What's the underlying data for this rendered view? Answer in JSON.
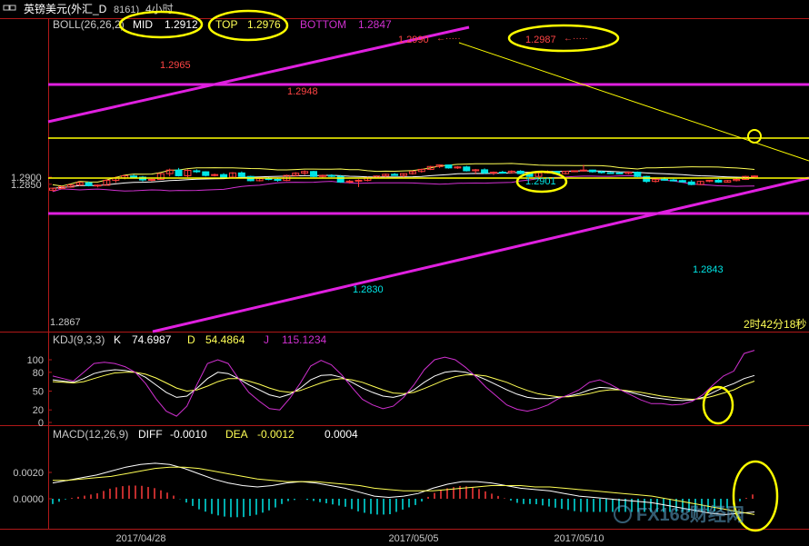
{
  "window": {
    "title_icon": "window-icon",
    "title": "英镑美元(外汇_D",
    "code": "8161)",
    "period": "4小时",
    "countdown": "2时42分18秒"
  },
  "colors": {
    "background": "#000000",
    "up_candle": "#ff3b3b",
    "down_candle": "#00e5e5",
    "mid_line": "#ffffff",
    "top_line": "#ffff55",
    "bottom_line": "#d030d0",
    "trendline": "#e020e0",
    "annotation": "#ffff00",
    "axis_red": "#b01818"
  },
  "boll": {
    "header": "BOLL(26,26,2)",
    "mid_label": "MID",
    "mid_value": "1.2912",
    "top_label": "TOP",
    "top_value": "1.2976",
    "bottom_label": "BOTTOM",
    "bottom_value": "1.2847"
  },
  "kdj": {
    "header": "KDJ(9,3,3)",
    "k_label": "K",
    "k_value": "74.6987",
    "d_label": "D",
    "d_value": "54.4864",
    "j_label": "J",
    "j_value": "115.1234"
  },
  "macd": {
    "header": "MACD(12,26,9)",
    "diff_label": "DIFF",
    "diff_value": "-0.0010",
    "dea_label": "DEA",
    "dea_value": "-0.0012",
    "macd_value": "0.0004"
  },
  "price_labels": [
    "1.2965",
    "1.2948",
    "1.2990",
    "1.2987",
    "1.2901",
    "1.2830",
    "1.2843",
    "1.2867"
  ],
  "watermark": "FX168财经网",
  "chart_data": [
    {
      "type": "candlestick",
      "panel": "BOLL",
      "ytick_labels": [
        "1.2900",
        "1.2850"
      ],
      "x_labels": [
        "2017/04/28",
        "2017/05/05",
        "2017/05/10"
      ],
      "ohlc": [
        [
          1.2808,
          1.2825,
          1.28,
          1.2822
        ],
        [
          1.282,
          1.2838,
          1.2815,
          1.2832
        ],
        [
          1.283,
          1.285,
          1.2825,
          1.2845
        ],
        [
          1.2845,
          1.287,
          1.2838,
          1.2862
        ],
        [
          1.286,
          1.2868,
          1.2835,
          1.284
        ],
        [
          1.284,
          1.2848,
          1.2828,
          1.2844
        ],
        [
          1.2843,
          1.2885,
          1.284,
          1.2878
        ],
        [
          1.2878,
          1.2905,
          1.286,
          1.2895
        ],
        [
          1.2895,
          1.2915,
          1.2885,
          1.291
        ],
        [
          1.2908,
          1.292,
          1.2895,
          1.29
        ],
        [
          1.29,
          1.2908,
          1.287,
          1.288
        ],
        [
          1.288,
          1.2888,
          1.287,
          1.2884
        ],
        [
          1.2884,
          1.293,
          1.288,
          1.2925
        ],
        [
          1.2925,
          1.296,
          1.2905,
          1.295
        ],
        [
          1.295,
          1.2965,
          1.2905,
          1.291
        ],
        [
          1.291,
          1.2955,
          1.29,
          1.2948
        ],
        [
          1.2945,
          1.2955,
          1.293,
          1.2938
        ],
        [
          1.2938,
          1.2942,
          1.2905,
          1.2912
        ],
        [
          1.2912,
          1.2925,
          1.2905,
          1.2918
        ],
        [
          1.2918,
          1.2928,
          1.2895,
          1.29
        ],
        [
          1.29,
          1.2935,
          1.2895,
          1.293
        ],
        [
          1.293,
          1.294,
          1.29,
          1.2905
        ],
        [
          1.2905,
          1.291,
          1.287,
          1.2875
        ],
        [
          1.2875,
          1.2898,
          1.287,
          1.289
        ],
        [
          1.289,
          1.29,
          1.2878,
          1.2884
        ],
        [
          1.2884,
          1.2892,
          1.2868,
          1.2877
        ],
        [
          1.2877,
          1.2918,
          1.2872,
          1.2912
        ],
        [
          1.2912,
          1.2935,
          1.2905,
          1.2928
        ],
        [
          1.2928,
          1.2948,
          1.2915,
          1.294
        ],
        [
          1.294,
          1.2945,
          1.29,
          1.2905
        ],
        [
          1.2905,
          1.2918,
          1.2895,
          1.2912
        ],
        [
          1.2912,
          1.292,
          1.29,
          1.2906
        ],
        [
          1.2906,
          1.2915,
          1.286,
          1.2865
        ],
        [
          1.2865,
          1.288,
          1.2855,
          1.2872
        ],
        [
          1.2872,
          1.2885,
          1.283,
          1.2878
        ],
        [
          1.2878,
          1.2902,
          1.287,
          1.2896
        ],
        [
          1.2896,
          1.2912,
          1.289,
          1.2908
        ],
        [
          1.2908,
          1.2925,
          1.29,
          1.292
        ],
        [
          1.292,
          1.293,
          1.291,
          1.2912
        ],
        [
          1.2912,
          1.2928,
          1.2895,
          1.2925
        ],
        [
          1.2925,
          1.2945,
          1.2918,
          1.294
        ],
        [
          1.294,
          1.296,
          1.2932,
          1.2955
        ],
        [
          1.2955,
          1.298,
          1.295,
          1.2975
        ],
        [
          1.2975,
          1.299,
          1.2965,
          1.2986
        ],
        [
          1.2986,
          1.2988,
          1.296,
          1.2965
        ],
        [
          1.2965,
          1.2978,
          1.2958,
          1.2972
        ],
        [
          1.2972,
          1.298,
          1.294,
          1.2945
        ],
        [
          1.2945,
          1.2958,
          1.292,
          1.2952
        ],
        [
          1.2952,
          1.2962,
          1.2922,
          1.293
        ],
        [
          1.293,
          1.294,
          1.2915,
          1.2935
        ],
        [
          1.2935,
          1.2945,
          1.2928,
          1.2932
        ],
        [
          1.2932,
          1.2948,
          1.2925,
          1.2942
        ],
        [
          1.2942,
          1.295,
          1.292,
          1.2925
        ],
        [
          1.2925,
          1.2932,
          1.2901,
          1.2905
        ],
        [
          1.2905,
          1.2935,
          1.2902,
          1.293
        ],
        [
          1.293,
          1.2948,
          1.2925,
          1.294
        ],
        [
          1.294,
          1.2945,
          1.2918,
          1.2925
        ],
        [
          1.2925,
          1.2945,
          1.292,
          1.2942
        ],
        [
          1.2942,
          1.2948,
          1.2935,
          1.2945
        ],
        [
          1.2945,
          1.2987,
          1.294,
          1.295
        ],
        [
          1.295,
          1.2952,
          1.2932,
          1.2938
        ],
        [
          1.2938,
          1.2945,
          1.2925,
          1.2932
        ],
        [
          1.2932,
          1.2938,
          1.2925,
          1.293
        ],
        [
          1.293,
          1.2936,
          1.2922,
          1.2926
        ],
        [
          1.2926,
          1.294,
          1.292,
          1.2935
        ],
        [
          1.2935,
          1.294,
          1.29,
          1.2905
        ],
        [
          1.2905,
          1.291,
          1.286,
          1.287
        ],
        [
          1.287,
          1.2892,
          1.2862,
          1.2885
        ],
        [
          1.2885,
          1.29,
          1.2875,
          1.288
        ],
        [
          1.288,
          1.2888,
          1.2872,
          1.2876
        ],
        [
          1.2876,
          1.2882,
          1.2862,
          1.2866
        ],
        [
          1.2866,
          1.288,
          1.2843,
          1.2848
        ],
        [
          1.2848,
          1.2875,
          1.2845,
          1.287
        ],
        [
          1.287,
          1.288,
          1.2865,
          1.2878
        ],
        [
          1.2878,
          1.2888,
          1.286,
          1.2865
        ],
        [
          1.2865,
          1.288,
          1.2862,
          1.2876
        ],
        [
          1.2876,
          1.289,
          1.287,
          1.2884
        ],
        [
          1.2884,
          1.291,
          1.288,
          1.2905
        ],
        [
          1.2905,
          1.2912,
          1.2896,
          1.2908
        ]
      ]
    },
    {
      "type": "line",
      "panel": "KDJ",
      "ytick_labels": [
        "100",
        "80",
        "50",
        "20",
        "0"
      ],
      "series": [
        {
          "name": "K",
          "values": [
            68,
            66,
            64,
            70,
            78,
            82,
            84,
            83,
            80,
            72,
            60,
            48,
            40,
            42,
            55,
            70,
            80,
            78,
            70,
            60,
            52,
            44,
            40,
            45,
            55,
            68,
            75,
            76,
            72,
            64,
            55,
            48,
            42,
            40,
            44,
            52,
            64,
            74,
            80,
            82,
            80,
            75,
            68,
            60,
            52,
            45,
            40,
            38,
            38,
            40,
            42,
            46,
            52,
            56,
            55,
            52,
            48,
            44,
            40,
            38,
            36,
            35,
            36,
            40,
            48,
            56,
            62,
            70,
            75
          ]
        },
        {
          "name": "D",
          "values": [
            65,
            64,
            63,
            65,
            70,
            75,
            79,
            80,
            80,
            77,
            71,
            63,
            55,
            50,
            52,
            58,
            65,
            70,
            70,
            66,
            61,
            55,
            50,
            48,
            51,
            57,
            63,
            68,
            70,
            68,
            64,
            58,
            52,
            47,
            46,
            48,
            54,
            61,
            68,
            73,
            76,
            76,
            74,
            69,
            64,
            57,
            51,
            46,
            43,
            41,
            41,
            43,
            46,
            50,
            52,
            52,
            50,
            48,
            45,
            42,
            40,
            38,
            37,
            38,
            42,
            47,
            52,
            60,
            66
          ]
        },
        {
          "name": "J",
          "values": [
            74,
            70,
            66,
            80,
            94,
            96,
            94,
            89,
            80,
            62,
            38,
            18,
            10,
            26,
            61,
            94,
            100,
            94,
            70,
            48,
            34,
            22,
            20,
            39,
            63,
            90,
            99,
            92,
            76,
            56,
            37,
            28,
            22,
            26,
            40,
            60,
            84,
            100,
            104,
            100,
            88,
            73,
            56,
            42,
            28,
            21,
            18,
            22,
            28,
            38,
            44,
            52,
            64,
            68,
            61,
            52,
            44,
            36,
            30,
            30,
            28,
            29,
            34,
            44,
            60,
            74,
            82,
            110,
            115
          ]
        }
      ]
    },
    {
      "type": "bar+line",
      "panel": "MACD",
      "ytick_labels": [
        "0.0020",
        "0.0000"
      ],
      "series": [
        {
          "name": "DIFF",
          "values": [
            0.0012,
            0.0014,
            0.0016,
            0.0018,
            0.0021,
            0.0024,
            0.0026,
            0.0027,
            0.0026,
            0.0023,
            0.0019,
            0.0015,
            0.0012,
            0.001,
            0.0009,
            0.001,
            0.0012,
            0.0013,
            0.0012,
            0.001,
            0.0008,
            0.0005,
            0.0002,
            0.0001,
            0.0002,
            0.0004,
            0.0008,
            0.0011,
            0.0013,
            0.0013,
            0.0012,
            0.001,
            0.0008,
            0.0007,
            0.0006,
            0.0004,
            0.0002,
            0.0001,
            0.0,
            -0.0001,
            -0.0002,
            -0.0003,
            -0.0005,
            -0.0007,
            -0.0009,
            -0.0011,
            -0.0012,
            -0.0011,
            -0.001
          ]
        },
        {
          "name": "DEA",
          "values": [
            0.0014,
            0.0014,
            0.0015,
            0.0016,
            0.0017,
            0.0019,
            0.0021,
            0.0023,
            0.0024,
            0.0024,
            0.0023,
            0.0021,
            0.0019,
            0.0017,
            0.0015,
            0.0014,
            0.0013,
            0.0013,
            0.0013,
            0.0012,
            0.0011,
            0.001,
            0.0008,
            0.0007,
            0.0006,
            0.0006,
            0.0006,
            0.0007,
            0.0008,
            0.0009,
            0.001,
            0.001,
            0.001,
            0.0009,
            0.0009,
            0.0008,
            0.0007,
            0.0006,
            0.0005,
            0.0004,
            0.0003,
            0.0002,
            0.0,
            -0.0002,
            -0.0004,
            -0.0006,
            -0.0008,
            -0.001,
            -0.0012
          ]
        }
      ]
    }
  ]
}
